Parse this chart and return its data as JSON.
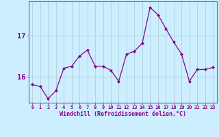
{
  "hours": [
    0,
    1,
    2,
    3,
    4,
    5,
    6,
    7,
    8,
    9,
    10,
    11,
    12,
    13,
    14,
    15,
    16,
    17,
    18,
    19,
    20,
    21,
    22,
    23
  ],
  "values": [
    15.8,
    15.75,
    15.45,
    15.65,
    16.2,
    16.25,
    16.5,
    16.65,
    16.25,
    16.25,
    16.15,
    15.88,
    16.55,
    16.62,
    16.82,
    17.7,
    17.52,
    17.18,
    16.85,
    16.55,
    15.88,
    16.17,
    16.17,
    16.22
  ],
  "line_color": "#880088",
  "marker_color": "#880088",
  "bg_color": "#cceeff",
  "grid_color": "#aacccc",
  "axis_color": "#666699",
  "text_color": "#880088",
  "xlabel": "Windchill (Refroidissement éolien,°C)",
  "ylim_min": 15.35,
  "ylim_max": 17.85,
  "yticks": [
    16,
    17
  ],
  "xlim_min": -0.5,
  "xlim_max": 23.5
}
